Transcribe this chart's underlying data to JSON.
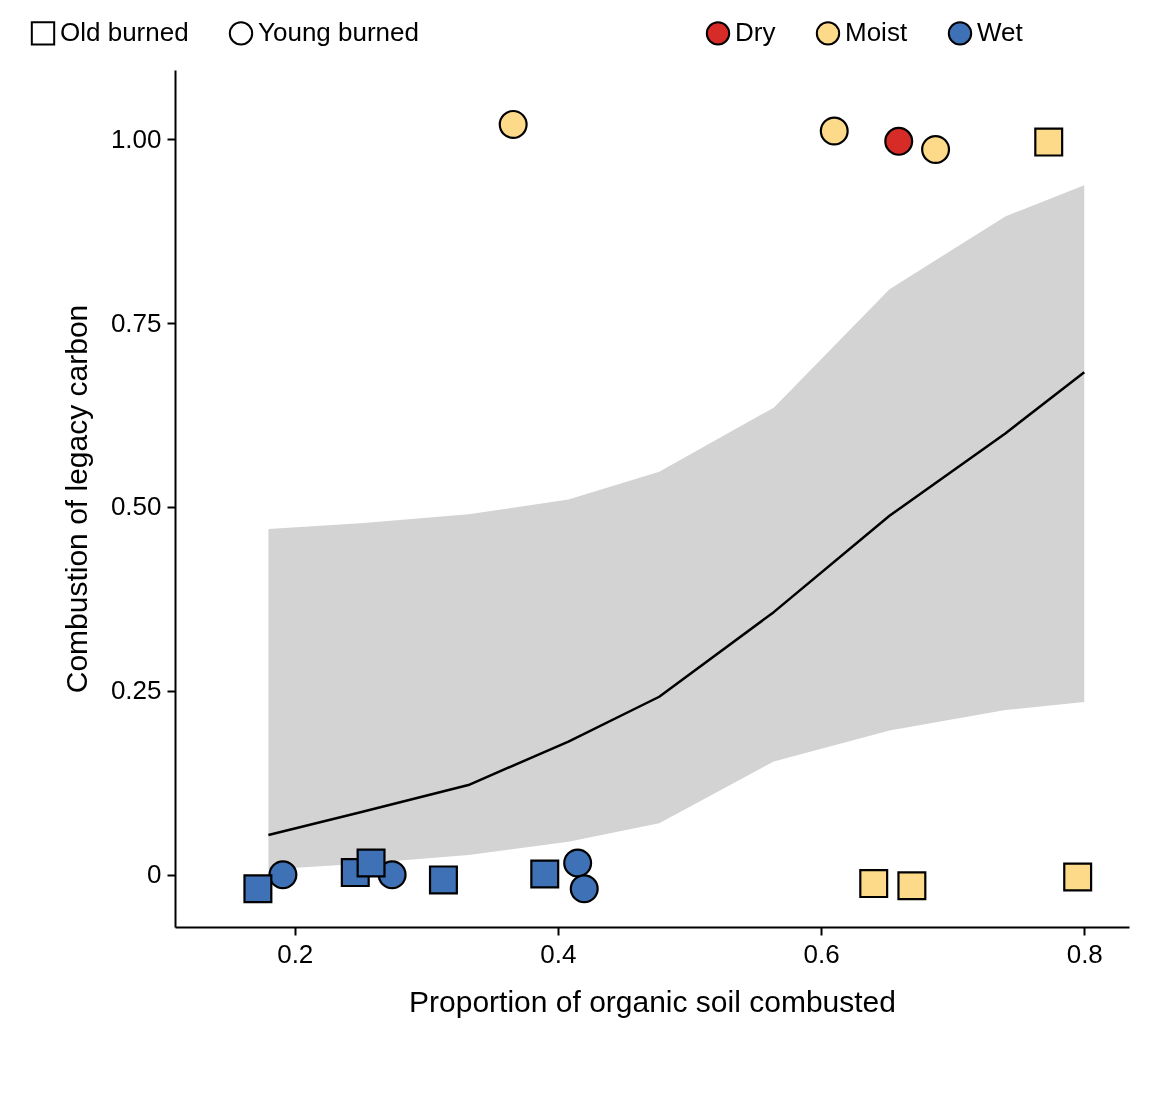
{
  "chart_data": {
    "type": "scatter",
    "xlabel": "Proportion of organic soil combusted",
    "ylabel": "Combustion of legacy carbon",
    "xlim": [
      0.109,
      0.834
    ],
    "xticks": [
      0.2,
      0.4,
      0.6,
      0.8
    ],
    "ylim": [
      -0.071,
      1.094
    ],
    "yticks": [
      0,
      0.25,
      {
        "value": 0.5,
        "label": "0.50"
      },
      0.75,
      {
        "value": 1,
        "label": "1.00"
      }
    ],
    "grid": false,
    "legend": "top",
    "annotations": [
      "Old burned",
      "Young burned"
    ],
    "series": [
      {
        "color": "#fdd98a",
        "marker": "square",
        "x": [
          0.773,
          0.64,
          0.669,
          0.795
        ],
        "values": [
          0.996,
          -0.012,
          -0.015,
          -0.003
        ]
      },
      {
        "name": "Dry",
        "color": "#d62b26",
        "marker": "circle",
        "x": [
          0.659
        ],
        "values": [
          0.997
        ]
      },
      {
        "name": "Moist",
        "color": "#fdd98a",
        "marker": "circle",
        "x": [
          0.366,
          0.61,
          0.687
        ],
        "values": [
          1.02,
          1.011,
          0.986
        ]
      },
      {
        "name": "Wet",
        "color": "#3e71b6",
        "marker": "circle",
        "x": [
          0.191,
          0.274,
          0.415,
          0.42
        ],
        "values": [
          0.0,
          0.0,
          0.016,
          -0.019
        ]
      },
      {
        "color": "#3e71b6",
        "marker": "square",
        "x": [
          0.172,
          0.246,
          0.258,
          0.313,
          0.39
        ],
        "values": [
          -0.019,
          0.003,
          0.016,
          -0.007,
          0.001
        ]
      },
      {
        "type": "line",
        "color": "#000000",
        "marker": "none",
        "line_style": "solid",
        "x": [
          0.18,
          0.25,
          0.332,
          0.408,
          0.477,
          0.564,
          0.652,
          0.74,
          0.8
        ],
        "values": [
          0.054,
          0.085,
          0.122,
          0.181,
          0.242,
          0.357,
          0.488,
          0.6,
          0.683
        ],
        "lower": [
          0.007,
          0.015,
          0.027,
          0.045,
          0.07,
          0.154,
          0.196,
          0.224,
          0.235
        ],
        "upper": [
          0.47,
          0.478,
          0.49,
          0.51,
          0.548,
          0.635,
          0.796,
          0.895,
          0.9375
        ]
      }
    ]
  }
}
